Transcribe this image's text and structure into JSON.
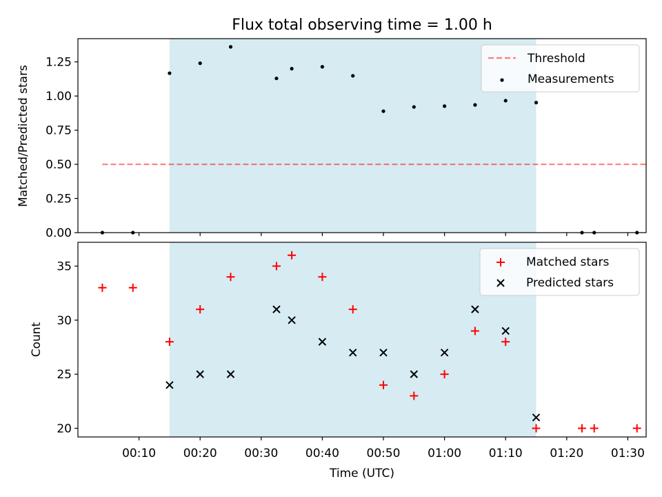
{
  "figure": {
    "title": "Flux total observing time = 1.00 h",
    "xlabel": "Time (UTC)",
    "x_tick_labels": [
      "00:10",
      "00:20",
      "00:30",
      "00:40",
      "00:50",
      "01:00",
      "01:10",
      "01:20",
      "01:30"
    ]
  },
  "colors": {
    "shade": "#add8e6",
    "threshold": "#ff0000",
    "measurements": "#000000",
    "matched": "#ff0000",
    "predicted": "#000000"
  },
  "chart_data": [
    {
      "type": "scatter",
      "panel": "top",
      "title": "Flux total observing time = 1.00 h",
      "xlabel": "",
      "ylabel": "Matched/Predicted stars",
      "x_unit": "minutes after 00:00 UTC",
      "xlim": [
        0,
        93
      ],
      "ylim": [
        0,
        1.42
      ],
      "yticks": [
        0.0,
        0.25,
        0.5,
        0.75,
        1.0,
        1.25
      ],
      "ytick_labels": [
        "0.00",
        "0.25",
        "0.50",
        "0.75",
        "1.00",
        "1.25"
      ],
      "shaded_region": [
        15,
        75
      ],
      "legend": {
        "placement": "upper right"
      },
      "series": [
        {
          "name": "Threshold",
          "type": "line",
          "style": "dashed",
          "x": [
            4,
            93
          ],
          "y": [
            0.5,
            0.5
          ]
        },
        {
          "name": "Measurements",
          "type": "scatter",
          "x": [
            4,
            9,
            15,
            20,
            25,
            32.5,
            35,
            40,
            45,
            50,
            55,
            60,
            65,
            70,
            75,
            82.5,
            84.5,
            91.5
          ],
          "y": [
            0.0,
            0.0,
            1.167,
            1.24,
            1.36,
            1.129,
            1.2,
            1.214,
            1.148,
            0.889,
            0.92,
            0.926,
            0.935,
            0.966,
            0.952,
            0.0,
            0.0,
            0.0
          ]
        }
      ]
    },
    {
      "type": "scatter",
      "panel": "bottom",
      "xlabel": "Time (UTC)",
      "ylabel": "Count",
      "x_unit": "minutes after 00:00 UTC",
      "xlim": [
        0,
        93
      ],
      "ylim": [
        19.2,
        37.2
      ],
      "yticks": [
        20,
        25,
        30,
        35
      ],
      "ytick_labels": [
        "20",
        "25",
        "30",
        "35"
      ],
      "xticks": [
        10,
        20,
        30,
        40,
        50,
        60,
        70,
        80,
        90
      ],
      "shaded_region": [
        15,
        75
      ],
      "legend": {
        "placement": "upper right"
      },
      "series": [
        {
          "name": "Matched stars",
          "marker": "+",
          "x": [
            4,
            9,
            15,
            20,
            25,
            32.5,
            35,
            40,
            45,
            50,
            55,
            60,
            65,
            70,
            75,
            82.5,
            84.5,
            91.5
          ],
          "y": [
            33,
            33,
            28,
            31,
            34,
            35,
            36,
            34,
            31,
            24,
            23,
            25,
            29,
            28,
            20,
            20,
            20,
            20
          ]
        },
        {
          "name": "Predicted stars",
          "marker": "x",
          "x": [
            15,
            20,
            25,
            32.5,
            35,
            40,
            45,
            50,
            55,
            60,
            65,
            70,
            75
          ],
          "y": [
            24,
            25,
            25,
            31,
            30,
            28,
            27,
            27,
            25,
            27,
            31,
            29,
            21
          ]
        }
      ]
    }
  ]
}
